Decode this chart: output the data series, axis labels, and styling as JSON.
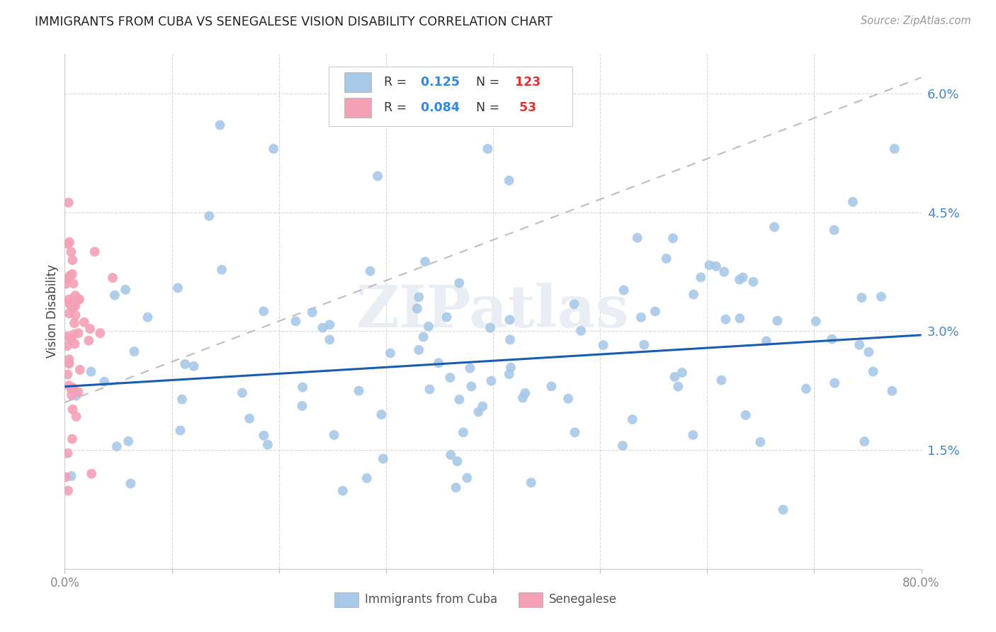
{
  "title": "IMMIGRANTS FROM CUBA VS SENEGALESE VISION DISABILITY CORRELATION CHART",
  "source": "Source: ZipAtlas.com",
  "ylabel": "Vision Disability",
  "yticks": [
    0.0,
    0.015,
    0.03,
    0.045,
    0.06
  ],
  "ytick_labels": [
    "",
    "1.5%",
    "3.0%",
    "4.5%",
    "6.0%"
  ],
  "xlim": [
    0.0,
    0.8
  ],
  "ylim": [
    0.0,
    0.065
  ],
  "cuba_R": 0.125,
  "cuba_N": 123,
  "senegal_R": 0.084,
  "senegal_N": 53,
  "cuba_color": "#a8c8e8",
  "senegal_color": "#f4a0b5",
  "cuba_line_color": "#1a5cb0",
  "background_color": "#ffffff",
  "watermark": "ZIPatlas",
  "cuba_line_y0": 0.023,
  "cuba_line_y1": 0.0295,
  "senegal_line_y0": 0.021,
  "senegal_line_y1": 0.062
}
